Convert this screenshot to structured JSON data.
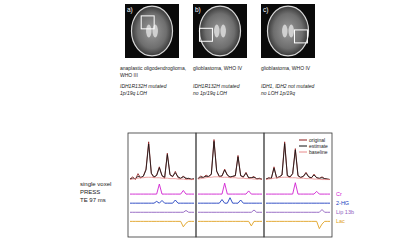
{
  "panels": [
    {
      "label": "a)",
      "diagnosis": [
        "anaplastic oligodendroglioma,",
        "WHO III"
      ],
      "genetics": [
        "IDH1R132H mutated",
        "1p/19q LOH"
      ]
    },
    {
      "label": "b)",
      "diagnosis": [
        "glioblastoma, WHO IV"
      ],
      "genetics": [
        "IDH1R132H mutated",
        "no 1p/19q LOH"
      ]
    },
    {
      "label": "c)",
      "diagnosis": [
        "glioblastoma, WHO IV"
      ],
      "genetics": [
        "IDH1, IDH2 not mutated",
        "no LOH 1p/19q"
      ]
    }
  ],
  "acquisition": [
    "single voxel",
    "PRESS",
    "TE 97 ms"
  ],
  "chart_data": [
    {
      "type": "line",
      "tick_labels": false,
      "grid": false,
      "x": [
        0,
        1,
        2,
        3,
        4,
        5,
        6,
        7,
        8,
        9,
        10,
        11,
        12,
        13,
        14,
        15,
        16,
        17,
        18,
        19,
        20,
        21,
        22,
        23,
        24
      ],
      "xlim": [
        0,
        24
      ],
      "ylim": [
        -12,
        10
      ],
      "series": [
        {
          "type": "spectrum",
          "color": "#8b1a1a",
          "values": [
            0.3,
            0.8,
            0.2,
            1.5,
            0.5,
            1.0,
            2.5,
            8.5,
            1.5,
            0.6,
            1.2,
            3.0,
            1.0,
            0.5,
            6.0,
            1.2,
            0.8,
            2.0,
            0.6,
            0.4,
            1.0,
            0.3,
            0.5,
            0.2,
            0.4
          ]
        },
        {
          "type": "spectrum",
          "color": "#111111",
          "values": [
            0.3,
            0.5,
            0.4,
            0.9,
            0.7,
            0.9,
            2.3,
            8.0,
            1.6,
            0.8,
            1.1,
            2.8,
            1.1,
            0.7,
            5.7,
            1.3,
            0.9,
            1.7,
            0.8,
            0.5,
            0.8,
            0.5,
            0.4,
            0.3,
            0.3
          ]
        },
        {
          "type": "spectrum",
          "color": "#e88a8a",
          "values": [
            0.2,
            0.3,
            0.4,
            0.5,
            0.6,
            0.6,
            0.7,
            0.7,
            0.7,
            0.6,
            0.6,
            0.6,
            0.5,
            0.5,
            0.5,
            0.4,
            0.4,
            0.4,
            0.3,
            0.3,
            0.3,
            0.2,
            0.2,
            0.2,
            0.2
          ]
        },
        {
          "type": "fit",
          "color": "#d020d0",
          "values": [
            -3,
            -3,
            -3,
            -3,
            -3,
            -3,
            -3,
            -3,
            -3,
            -3,
            -3,
            -0.8,
            -3,
            -3,
            -3,
            -3,
            -3,
            -3,
            -3,
            -3,
            -2.2,
            -3,
            -3,
            -3,
            -3
          ]
        },
        {
          "type": "fit",
          "color": "#2040c0",
          "values": [
            -5,
            -5,
            -5,
            -5,
            -5,
            -5,
            -5,
            -5,
            -5,
            -5,
            -4.6,
            -5,
            -4.4,
            -5,
            -5,
            -5,
            -5,
            -4.3,
            -5,
            -5,
            -5,
            -5,
            -5,
            -5,
            -5
          ]
        },
        {
          "type": "fit",
          "color": "#9060c0",
          "values": [
            -7,
            -7,
            -7,
            -7,
            -7,
            -7,
            -7,
            -7,
            -7,
            -7,
            -7,
            -7,
            -7,
            -7,
            -7,
            -7,
            -7,
            -7,
            -7,
            -7,
            -7,
            -6.6,
            -7,
            -7,
            -7
          ]
        },
        {
          "type": "fit",
          "color": "#e0a020",
          "values": [
            -9,
            -9,
            -9,
            -9,
            -9,
            -9,
            -9,
            -9,
            -9,
            -9,
            -9,
            -9,
            -9,
            -9,
            -9,
            -9,
            -9,
            -9,
            -9,
            -9,
            -10.2,
            -9.4,
            -9,
            -9,
            -9
          ]
        }
      ]
    },
    {
      "type": "line",
      "tick_labels": false,
      "grid": false,
      "x": [
        0,
        1,
        2,
        3,
        4,
        5,
        6,
        7,
        8,
        9,
        10,
        11,
        12,
        13,
        14,
        15,
        16,
        17,
        18,
        19,
        20,
        21,
        22,
        23,
        24
      ],
      "xlim": [
        0,
        24
      ],
      "ylim": [
        -12,
        10
      ],
      "series": [
        {
          "type": "spectrum",
          "color": "#8b1a1a",
          "values": [
            0.4,
            1.0,
            0.6,
            1.2,
            0.8,
            1.5,
            9.0,
            2.0,
            0.8,
            1.0,
            2.5,
            1.2,
            0.6,
            0.9,
            1.0,
            5.5,
            1.0,
            0.7,
            1.8,
            0.5,
            0.6,
            0.9,
            0.3,
            0.5,
            0.2
          ]
        },
        {
          "type": "spectrum",
          "color": "#111111",
          "values": [
            0.4,
            0.7,
            0.7,
            0.9,
            0.9,
            1.3,
            8.6,
            2.1,
            0.9,
            1.0,
            2.3,
            1.2,
            0.8,
            0.9,
            1.1,
            5.2,
            1.1,
            0.8,
            1.6,
            0.6,
            0.6,
            0.7,
            0.4,
            0.4,
            0.3
          ]
        },
        {
          "type": "spectrum",
          "color": "#e88a8a",
          "values": [
            0.3,
            0.4,
            0.5,
            0.6,
            0.7,
            0.7,
            0.8,
            0.8,
            0.8,
            0.7,
            0.7,
            0.7,
            0.6,
            0.6,
            0.6,
            0.5,
            0.5,
            0.5,
            0.4,
            0.4,
            0.4,
            0.3,
            0.3,
            0.3,
            0.3
          ]
        },
        {
          "type": "fit",
          "color": "#d020d0",
          "values": [
            -3,
            -3,
            -3,
            -3,
            -3,
            -3,
            -3,
            -3,
            -3,
            -3,
            -0.6,
            -3,
            -3,
            -3,
            -3,
            -3,
            -3,
            -3,
            -3,
            -2.3,
            -3,
            -3,
            -3,
            -3,
            -3
          ]
        },
        {
          "type": "fit",
          "color": "#2040c0",
          "values": [
            -5,
            -5,
            -5,
            -5,
            -5,
            -5,
            -5,
            -5,
            -5,
            -4.2,
            -5,
            -5,
            -3.8,
            -5,
            -5,
            -5,
            -4.3,
            -5,
            -5,
            -5,
            -5,
            -5,
            -5,
            -5,
            -5
          ]
        },
        {
          "type": "fit",
          "color": "#9060c0",
          "values": [
            -7,
            -7,
            -7,
            -7,
            -7,
            -7,
            -7,
            -7,
            -7,
            -7,
            -7,
            -7,
            -7,
            -7,
            -7,
            -7,
            -7,
            -7,
            -7,
            -7,
            -7,
            -6.5,
            -7,
            -7,
            -7
          ]
        },
        {
          "type": "fit",
          "color": "#e0a020",
          "values": [
            -9,
            -9,
            -9,
            -9,
            -9,
            -9,
            -9,
            -9,
            -9,
            -9,
            -9,
            -9,
            -9,
            -9,
            -9,
            -9,
            -9,
            -9,
            -9,
            -9,
            -10.0,
            -9,
            -9,
            -9,
            -9
          ]
        }
      ]
    },
    {
      "type": "line",
      "tick_labels": false,
      "grid": false,
      "legend": "top-right",
      "x": [
        0,
        1,
        2,
        3,
        4,
        5,
        6,
        7,
        8,
        9,
        10,
        11,
        12,
        13,
        14,
        15,
        16,
        17,
        18,
        19,
        20,
        21,
        22,
        23,
        24
      ],
      "xlim": [
        0,
        24
      ],
      "ylim": [
        -12,
        10
      ],
      "series": [
        {
          "name": "original",
          "type": "spectrum",
          "color": "#8b1a1a",
          "values": [
            0.3,
            0.6,
            0.4,
            3.0,
            0.5,
            0.8,
            1.2,
            8.5,
            1.0,
            0.7,
            1.5,
            7.0,
            1.0,
            0.6,
            0.9,
            1.8,
            0.8,
            0.5,
            1.4,
            0.6,
            0.4,
            0.8,
            0.4,
            0.3,
            0.2
          ]
        },
        {
          "name": "estimate",
          "type": "spectrum",
          "color": "#111111",
          "values": [
            0.3,
            0.5,
            0.5,
            2.7,
            0.6,
            0.8,
            1.2,
            8.1,
            1.1,
            0.8,
            1.5,
            6.7,
            1.1,
            0.7,
            0.9,
            1.6,
            0.8,
            0.6,
            1.2,
            0.6,
            0.5,
            0.6,
            0.4,
            0.3,
            0.2
          ]
        },
        {
          "name": "baseline",
          "type": "spectrum",
          "color": "#e88a8a",
          "values": [
            0.2,
            0.3,
            0.4,
            0.5,
            0.6,
            0.6,
            0.7,
            0.7,
            0.7,
            0.6,
            0.6,
            0.6,
            0.5,
            0.5,
            0.5,
            0.4,
            0.4,
            0.4,
            0.3,
            0.3,
            0.3,
            0.2,
            0.2,
            0.2,
            0.2
          ]
        },
        {
          "name": "Cr",
          "type": "fit",
          "color": "#d020d0",
          "values": [
            -3,
            -3,
            -3,
            -3,
            -3,
            -3,
            -3,
            -3,
            -3,
            -3,
            -3,
            -0.5,
            -3,
            -3,
            -3,
            -3,
            -3,
            -3,
            -3,
            -2.4,
            -3,
            -3,
            -3,
            -3,
            -3
          ]
        },
        {
          "name": "2-HG",
          "type": "fit",
          "color": "#2040c0",
          "values": [
            -5,
            -5,
            -5,
            -5,
            -5,
            -5,
            -5,
            -5,
            -5,
            -5,
            -5,
            -5,
            -5,
            -5,
            -5,
            -5,
            -5,
            -5,
            -5,
            -5,
            -5,
            -5,
            -5,
            -5,
            -5
          ]
        },
        {
          "name": "Lip 13b",
          "type": "fit",
          "color": "#9060c0",
          "values": [
            -7,
            -7,
            -7,
            -7,
            -7,
            -7,
            -7,
            -7,
            -7,
            -7,
            -7,
            -7,
            -7,
            -7,
            -7,
            -7,
            -7,
            -7,
            -7,
            -7,
            -7,
            -6.4,
            -7,
            -7,
            -7
          ]
        },
        {
          "name": "Lac",
          "type": "fit",
          "color": "#e0a020",
          "values": [
            -9,
            -9,
            -9,
            -9,
            -9,
            -9,
            -9,
            -9,
            -9,
            -9,
            -9,
            -9,
            -9,
            -9,
            -9,
            -9,
            -9,
            -9,
            -9,
            -9,
            -10.6,
            -9.6,
            -9,
            -9,
            -9
          ]
        }
      ]
    }
  ]
}
